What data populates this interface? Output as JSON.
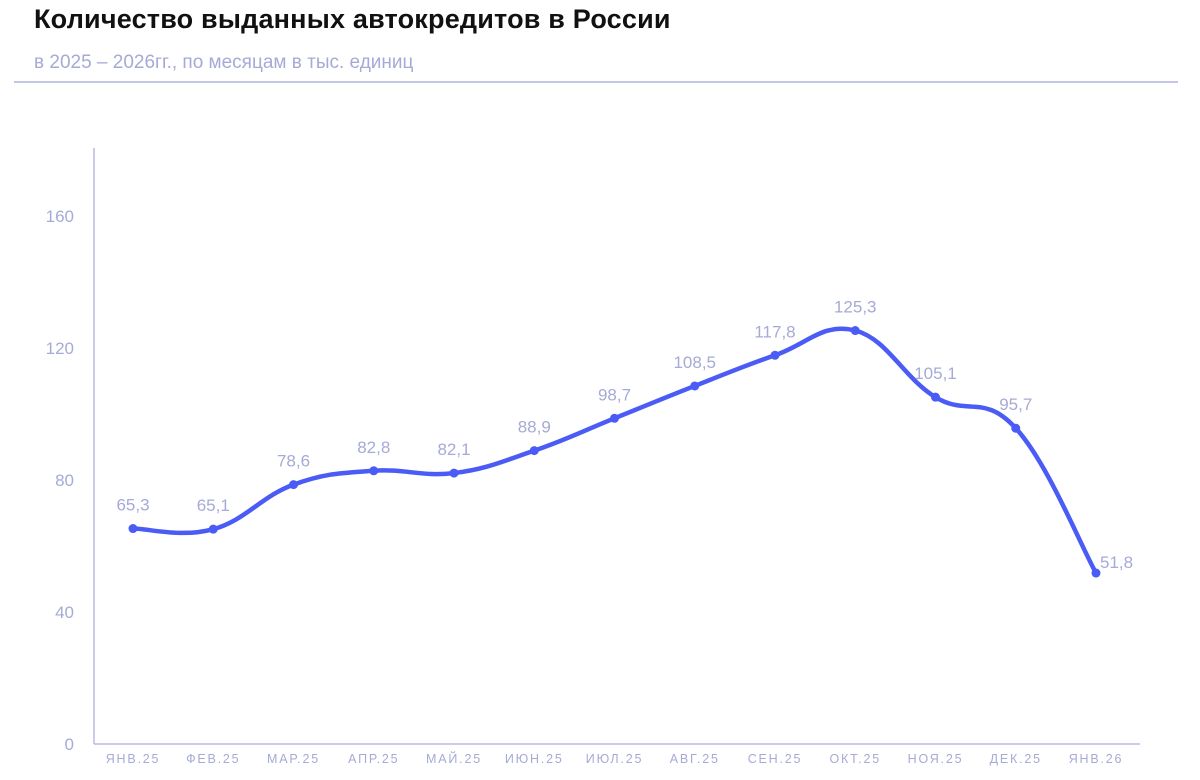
{
  "header": {
    "title": "Количество выданных автокредитов в России",
    "subtitle": "в 2025 – 2026гг., по месяцам в тыс. единиц"
  },
  "colors": {
    "line": "#4a5cf5",
    "axis": "#b8bce2",
    "text_muted": "#a5aad6"
  },
  "chart_data": {
    "type": "line",
    "title": "Количество выданных автокредитов в России",
    "subtitle": "в 2025 – 2026гг., по месяцам в тыс. единиц",
    "xlabel": "",
    "ylabel": "",
    "categories": [
      "ЯНВ.25",
      "ФЕВ.25",
      "МАР.25",
      "АПР.25",
      "МАЙ.25",
      "ИЮН.25",
      "ИЮЛ.25",
      "АВГ.25",
      "СЕН.25",
      "ОКТ.25",
      "НОЯ.25",
      "ДЕК.25",
      "ЯНВ.26"
    ],
    "values": [
      65.3,
      65.1,
      78.6,
      82.8,
      82.1,
      88.9,
      98.7,
      108.5,
      117.8,
      125.3,
      105.1,
      95.7,
      51.8
    ],
    "value_labels": [
      "65,3",
      "65,1",
      "78,6",
      "82,8",
      "82,1",
      "88,9",
      "98,7",
      "108,5",
      "117,8",
      "125,3",
      "105,1",
      "95,7",
      "51,8"
    ],
    "yticks": [
      0,
      40,
      80,
      120,
      160
    ],
    "ylim": [
      0,
      180
    ],
    "grid": false,
    "legend": "none",
    "smooth": true
  }
}
